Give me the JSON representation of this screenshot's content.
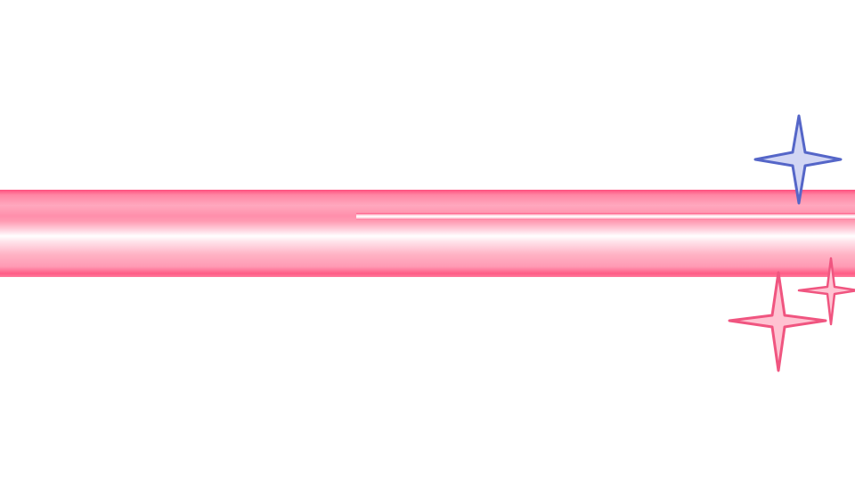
{
  "banner": {
    "colors": {
      "primary": "#ff4f7e",
      "light": "#ffa8be",
      "highlight": "#ffffff"
    }
  },
  "sparkles": [
    {
      "icon": "four-point-star-icon",
      "color": "#5566c8",
      "fill": "#d2d6f4"
    },
    {
      "icon": "four-point-star-icon",
      "color": "#f05580",
      "fill": "#ffc3d2"
    },
    {
      "icon": "four-point-star-icon",
      "color": "#f05580",
      "fill": "#ffc3d2"
    }
  ]
}
